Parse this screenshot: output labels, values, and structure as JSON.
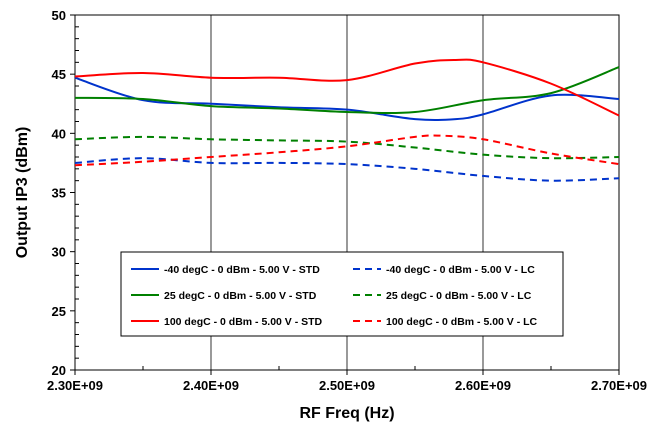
{
  "chart_data": {
    "type": "line",
    "title": "",
    "xlabel": "RF Freq (Hz)",
    "ylabel": "Output IP3 (dBm)",
    "xlim": [
      2300000000,
      2700000000
    ],
    "ylim": [
      20,
      50
    ],
    "x_ticks": [
      2300000000,
      2400000000,
      2500000000,
      2600000000,
      2700000000
    ],
    "x_tick_labels": [
      "2.30E+09",
      "2.40E+09",
      "2.50E+09",
      "2.60E+09",
      "2.70E+09"
    ],
    "y_ticks": [
      20,
      25,
      30,
      35,
      40,
      45,
      50
    ],
    "y_tick_labels": [
      "20",
      "25",
      "30",
      "35",
      "40",
      "45",
      "50"
    ],
    "grid": "vertical",
    "legend_position": "lower-center-inside",
    "series": [
      {
        "name": "-40 degC - 0 dBm - 5.00 V - STD",
        "color": "#0033cc",
        "dash": "solid",
        "x": [
          2300000000,
          2350000000,
          2400000000,
          2450000000,
          2500000000,
          2550000000,
          2580000000,
          2600000000,
          2650000000,
          2700000000
        ],
        "y": [
          44.7,
          42.8,
          42.5,
          42.2,
          42.0,
          41.2,
          41.2,
          41.6,
          43.2,
          42.9
        ]
      },
      {
        "name": "-40 degC - 0 dBm - 5.00 V - LC",
        "color": "#0033cc",
        "dash": "dashed",
        "x": [
          2300000000,
          2350000000,
          2400000000,
          2450000000,
          2500000000,
          2550000000,
          2600000000,
          2650000000,
          2700000000
        ],
        "y": [
          37.5,
          37.9,
          37.5,
          37.5,
          37.4,
          37.0,
          36.4,
          36.0,
          36.2
        ]
      },
      {
        "name": "25 degC - 0 dBm - 5.00 V - STD",
        "color": "#008000",
        "dash": "solid",
        "x": [
          2300000000,
          2350000000,
          2400000000,
          2450000000,
          2500000000,
          2550000000,
          2600000000,
          2650000000,
          2700000000
        ],
        "y": [
          43.0,
          42.9,
          42.3,
          42.1,
          41.8,
          41.8,
          42.8,
          43.4,
          45.6
        ]
      },
      {
        "name": "25 degC - 0 dBm - 5.00 V - LC",
        "color": "#008000",
        "dash": "dashed",
        "x": [
          2300000000,
          2350000000,
          2400000000,
          2450000000,
          2500000000,
          2550000000,
          2600000000,
          2650000000,
          2700000000
        ],
        "y": [
          39.5,
          39.7,
          39.5,
          39.4,
          39.3,
          38.8,
          38.2,
          37.9,
          38.0
        ]
      },
      {
        "name": "100 degC - 0 dBm - 5.00 V - STD",
        "color": "#ff0000",
        "dash": "solid",
        "x": [
          2300000000,
          2350000000,
          2400000000,
          2450000000,
          2500000000,
          2550000000,
          2580000000,
          2600000000,
          2650000000,
          2700000000
        ],
        "y": [
          44.8,
          45.1,
          44.7,
          44.7,
          44.5,
          45.9,
          46.2,
          46.0,
          44.2,
          41.5
        ]
      },
      {
        "name": "100 degC - 0 dBm - 5.00 V - LC",
        "color": "#ff0000",
        "dash": "dashed",
        "x": [
          2300000000,
          2350000000,
          2400000000,
          2450000000,
          2500000000,
          2550000000,
          2570000000,
          2600000000,
          2650000000,
          2700000000
        ],
        "y": [
          37.3,
          37.6,
          38.0,
          38.4,
          38.9,
          39.7,
          39.8,
          39.5,
          38.3,
          37.4
        ]
      }
    ]
  }
}
